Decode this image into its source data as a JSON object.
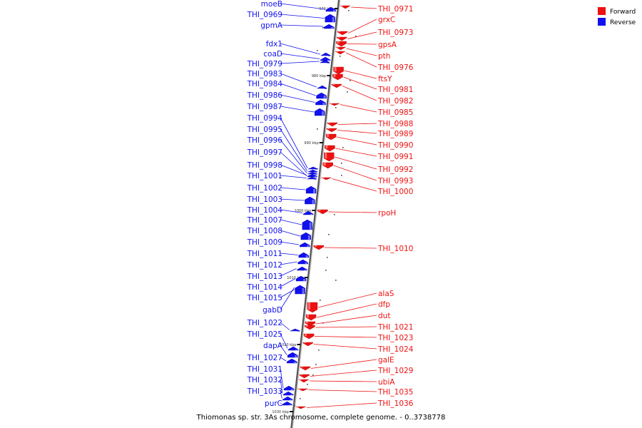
{
  "caption": "Thiomonas sp. str. 3As chromosome, complete genome. - 0..3738778",
  "legend": {
    "forward_label": "Forward",
    "reverse_label": "Reverse",
    "forward_color": "#ee1111",
    "reverse_color": "#1111ee"
  },
  "position_markers": [
    "970 kbp",
    "980 kbp",
    "990 kbp",
    "1000 kbp",
    "1010 kbp",
    "1020 kbp",
    "1030 kbp"
  ],
  "reverse_genes": [
    "moeB",
    "THI_0969",
    "gpmA",
    "fdx1",
    "coaD",
    "THI_0979",
    "THI_0983",
    "THI_0984",
    "THI_0986",
    "THI_0987",
    "THI_0994",
    "THI_0995",
    "THI_0996",
    "THI_0997",
    "THI_0998",
    "THI_1001",
    "THI_1002",
    "THI_1003",
    "THI_1004",
    "THI_1007",
    "THI_1008",
    "THI_1009",
    "THI_1011",
    "THI_1012",
    "THI_1013",
    "THI_1014",
    "THI_1015",
    "gabD",
    "THI_1022",
    "THI_1025",
    "dapA",
    "THI_1027",
    "THI_1031",
    "THI_1032",
    "THI_1033",
    "purC"
  ],
  "forward_genes": [
    "THI_0971",
    "grxC",
    "THI_0973",
    "gpsA",
    "pth",
    "THI_0976",
    "ftsY",
    "THI_0981",
    "THI_0982",
    "THI_0985",
    "THI_0988",
    "THI_0989",
    "THI_0990",
    "THI_0991",
    "THI_0992",
    "THI_0993",
    "THI_1000",
    "rpoH",
    "THI_1010",
    "alaS",
    "dfp",
    "dut",
    "THI_1021",
    "THI_1023",
    "THI_1024",
    "galE",
    "THI_1029",
    "ubiA",
    "THI_1035",
    "THI_1036"
  ]
}
